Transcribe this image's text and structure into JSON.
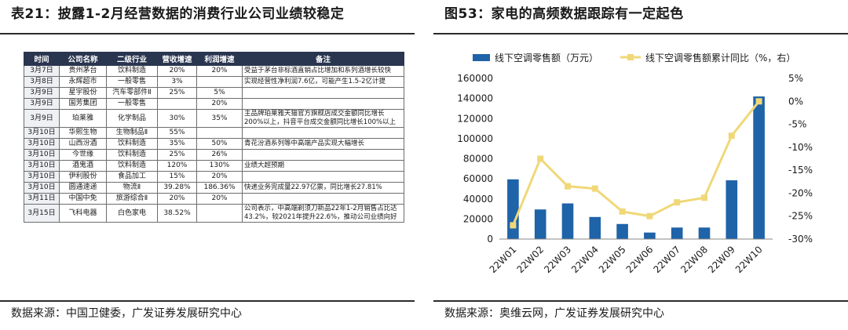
{
  "left_panel": {
    "title": "表21：披露1-2月经营数据的消费行业公司业绩较稳定",
    "source": "数据来源：中国卫健委，广发证券发展研究中心",
    "table": {
      "headers": [
        "时间",
        "公司名称",
        "二级行业",
        "营收增速",
        "利润增速",
        "备注"
      ],
      "rows": [
        {
          "date": "3月7日",
          "company": "贵州茅台",
          "industry": "饮料制造",
          "rev": "20%",
          "profit": "20%",
          "note": "受益于茅台非标酒直销占比增加和系列酒增长较快"
        },
        {
          "date": "3月8日",
          "company": "永辉超市",
          "industry": "一般零售",
          "rev": "3%",
          "profit": "",
          "note": "实现经营性净利润7.6亿，可能产生1.5-2亿计提"
        },
        {
          "date": "3月9日",
          "company": "星宇股份",
          "industry": "汽车零部件Ⅱ",
          "rev": "25%",
          "profit": "5%",
          "note": ""
        },
        {
          "date": "3月9日",
          "company": "国芳集团",
          "industry": "一般零售",
          "rev": "",
          "profit": "20%",
          "note": ""
        },
        {
          "date": "3月9日",
          "company": "珀莱雅",
          "industry": "化学制品",
          "rev": "30%",
          "profit": "35%",
          "note": "主品牌珀莱雅天猫官方旗舰店成交金额同比增长200%以上，抖音平台成交金额同比增长100%以上"
        },
        {
          "date": "3月10日",
          "company": "华熙生物",
          "industry": "生物制品Ⅱ",
          "rev": "55%",
          "profit": "",
          "note": ""
        },
        {
          "date": "3月10日",
          "company": "山西汾酒",
          "industry": "饮料制造",
          "rev": "35%",
          "profit": "50%",
          "note": "青花汾酒系列等中高端产品实现大幅增长"
        },
        {
          "date": "3月10日",
          "company": "今世缘",
          "industry": "饮料制造",
          "rev": "25%",
          "profit": "26%",
          "note": ""
        },
        {
          "date": "3月10日",
          "company": "酒鬼酒",
          "industry": "饮料制造",
          "rev": "120%",
          "profit": "130%",
          "note": "业绩大超预期"
        },
        {
          "date": "3月10日",
          "company": "伊利股份",
          "industry": "食品加工",
          "rev": "15%",
          "profit": "20%",
          "note": ""
        },
        {
          "date": "3月10日",
          "company": "圆通速递",
          "industry": "物流Ⅱ",
          "rev": "39.28%",
          "profit": "186.36%",
          "note": "快递业务完成量22.97亿票，同比增长27.81%"
        },
        {
          "date": "3月11日",
          "company": "中国中免",
          "industry": "旅游综合Ⅱ",
          "rev": "20%",
          "profit": "20%",
          "note": ""
        },
        {
          "date": "3月15日",
          "company": "飞科电器",
          "industry": "白色家电",
          "rev": "38.52%",
          "profit": "",
          "note": "公司表示，中高端剃须刀新品22年1-2月销售占比达43.2%，较2021年提升22.6%，推动公司业绩向好"
        }
      ]
    }
  },
  "right_panel": {
    "title": "图53：家电的高频数据跟踪有一定起色",
    "source": "数据来源：奥维云网，广发证券发展研究中心"
  },
  "chart_data": {
    "type": "bar",
    "title": "",
    "categories": [
      "22W01",
      "22W02",
      "22W03",
      "22W04",
      "22W05",
      "22W06",
      "22W07",
      "22W08",
      "22W09",
      "22W10"
    ],
    "series": [
      {
        "name": "线下空调零售额（万元）",
        "kind": "bar",
        "axis": "left",
        "color": "#1f63a8",
        "values": [
          59500,
          29500,
          35500,
          22000,
          15000,
          6500,
          11500,
          11500,
          58500,
          142000
        ]
      },
      {
        "name": "线下空调零售额累计同比（%，右）",
        "kind": "line",
        "axis": "right",
        "color": "#f0d879",
        "values": [
          -27,
          -12.5,
          -18.5,
          -19,
          -24,
          -25,
          -22,
          -21,
          -7.5,
          0
        ]
      }
    ],
    "y_left": {
      "min": 0,
      "max": 160000,
      "step": 20000,
      "tick_labels": [
        "0",
        "20000",
        "40000",
        "60000",
        "80000",
        "100000",
        "120000",
        "140000",
        "160000"
      ]
    },
    "y_right": {
      "min": -30,
      "max": 5,
      "step": 5,
      "tick_labels": [
        "-30%",
        "-25%",
        "-20%",
        "-15%",
        "-10%",
        "-5%",
        "0%",
        "5%"
      ]
    },
    "legend_position": "top",
    "grid": false
  }
}
